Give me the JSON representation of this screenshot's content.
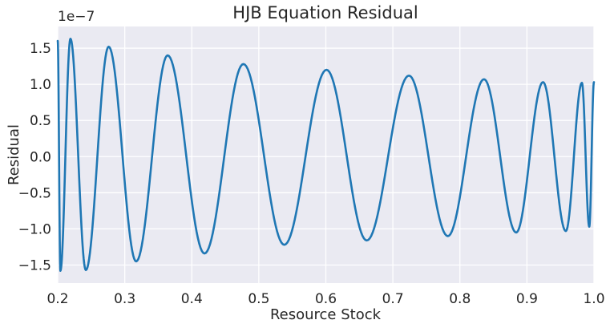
{
  "chart_data": {
    "type": "line",
    "title": "HJB Equation Residual",
    "xlabel": "Resource Stock",
    "ylabel": "Residual",
    "y_offset_label": "1e−7",
    "xlim": [
      0.2,
      1.0
    ],
    "ylim": [
      -1.75,
      1.8
    ],
    "y_scale": 1e-07,
    "x_ticks": [
      0.2,
      0.3,
      0.4,
      0.5,
      0.6,
      0.7,
      0.8,
      0.9,
      1.0
    ],
    "x_tick_labels": [
      "0.2",
      "0.3",
      "0.4",
      "0.5",
      "0.6",
      "0.7",
      "0.8",
      "0.9",
      "1.0"
    ],
    "y_ticks": [
      1.5,
      1.0,
      0.5,
      0.0,
      -0.5,
      -1.0,
      -1.5
    ],
    "y_tick_labels": [
      "1.5",
      "1.0",
      "0.5",
      "0.0",
      "−0.5",
      "−1.0",
      "−1.5"
    ],
    "grid": true,
    "colors": {
      "plot_background": "#eaeaf2",
      "grid": "#ffffff",
      "line": "#1f77b4",
      "text": "#262626"
    },
    "series": [
      {
        "name": "residual",
        "x": [
          0.2,
          0.204,
          0.219,
          0.242,
          0.276,
          0.317,
          0.364,
          0.419,
          0.477,
          0.538,
          0.601,
          0.661,
          0.724,
          0.782,
          0.836,
          0.884,
          0.924,
          0.958,
          0.982,
          0.993,
          1.0
        ],
        "values": [
          1.6,
          -1.58,
          1.63,
          -1.57,
          1.52,
          -1.45,
          1.4,
          -1.34,
          1.28,
          -1.22,
          1.2,
          -1.16,
          1.12,
          -1.1,
          1.07,
          -1.05,
          1.03,
          -1.03,
          1.02,
          -0.97,
          1.03
        ]
      }
    ]
  }
}
